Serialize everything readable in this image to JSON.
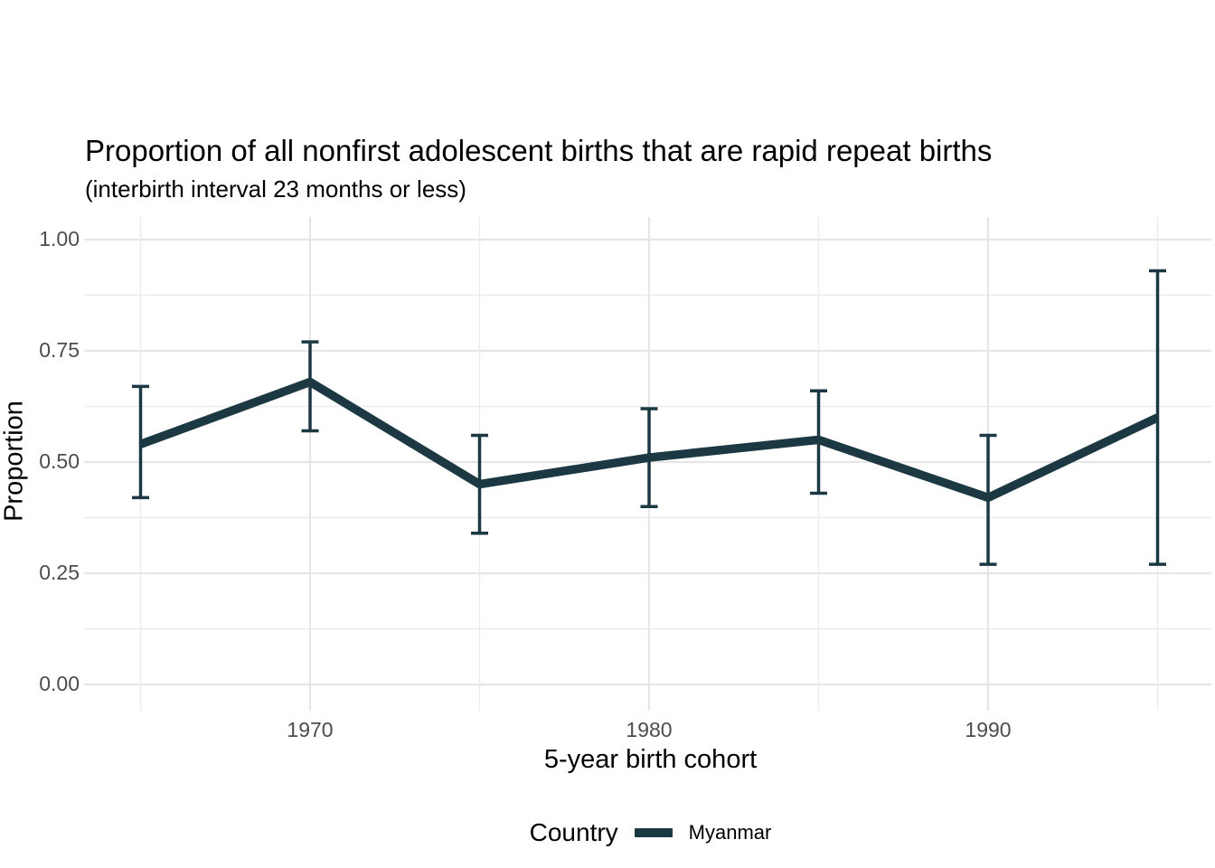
{
  "chart_data": {
    "type": "line",
    "error_bars": true,
    "title": "Proportion of all nonfirst adolescent births that are rapid repeat births",
    "subtitle": "(interbirth interval 23 months or less)",
    "xlabel": "5-year birth cohort",
    "ylabel": "Proportion",
    "legend_title": "Country",
    "legend_position": "bottom",
    "grid": true,
    "xlim": [
      1963.5,
      1996.5
    ],
    "ylim": [
      0.0,
      1.0
    ],
    "xticks": [
      1970,
      1980,
      1990
    ],
    "xtick_labels": [
      "1970",
      "1980",
      "1990"
    ],
    "yticks": [
      0.0,
      0.25,
      0.5,
      0.75,
      1.0
    ],
    "ytick_labels": [
      "0.00",
      "0.25",
      "0.50",
      "0.75",
      "1.00"
    ],
    "minor_xticks": [
      1965,
      1975,
      1985,
      1995
    ],
    "minor_yticks": [
      0.125,
      0.375,
      0.625,
      0.875
    ],
    "series": [
      {
        "name": "Myanmar",
        "color": "#1c3943",
        "x": [
          1965,
          1970,
          1975,
          1980,
          1985,
          1990,
          1995
        ],
        "y": [
          0.54,
          0.68,
          0.45,
          0.51,
          0.55,
          0.42,
          0.6
        ],
        "ci_low": [
          0.42,
          0.57,
          0.34,
          0.4,
          0.43,
          0.27,
          0.27
        ],
        "ci_high": [
          0.67,
          0.77,
          0.56,
          0.62,
          0.66,
          0.56,
          0.93
        ]
      }
    ],
    "colors": {
      "background": "#ffffff",
      "major_grid": "#e6e6e6",
      "minor_grid": "#ececec",
      "tick_text": "#4d4d4d",
      "title_text": "#000000"
    }
  }
}
